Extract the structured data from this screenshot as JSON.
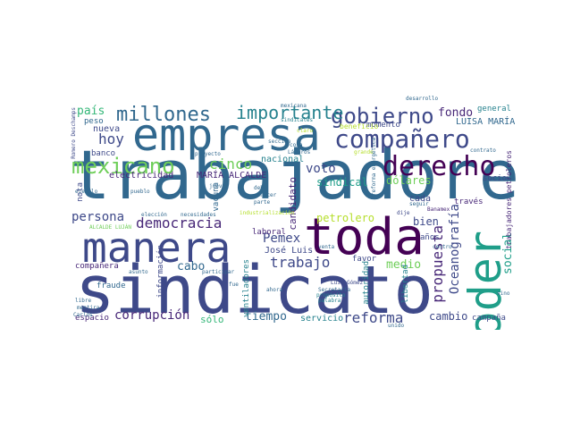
{
  "colors": {
    "background": "#ffffff",
    "palette": [
      "#440154",
      "#482878",
      "#3e4989",
      "#31688e",
      "#26828e",
      "#1f9e89",
      "#35b779",
      "#6ece58",
      "#b5de2b",
      "#fde725"
    ]
  },
  "words": {
    "trabajadores": "trabajadores",
    "sindicato": "sindicato",
    "empresa": "empresa",
    "manera": "manera",
    "toda": "toda",
    "poder": "poder",
    "companero": "compañero",
    "derecho": "derecho",
    "gobierno": "gobierno",
    "millones": "millones",
    "importante": "importante",
    "mexicano": "mexicano",
    "hoy": "hoy",
    "cinco": "cinco",
    "democracia": "democracia",
    "pemex": "Pemex",
    "trabajo": "trabajo",
    "propuesta": "propuesta",
    "oceanografia": "Oceanografía",
    "voto": "voto",
    "sindical": "sindical",
    "dolares": "dólares",
    "persona": "persona",
    "corrupcion": "corrupción",
    "reforma": "reforma",
    "tiempo": "tiempo",
    "cabo": "cabo",
    "medio": "medio",
    "social": "social",
    "cambio": "cambio",
    "fondo": "fondo",
    "luisa_maria": "LUISA MARÍA",
    "pais": "país",
    "nueva": "nueva",
    "peso": "peso",
    "electricidad": "electricidad",
    "maria_alcalde": "MARÍA ALCALDE",
    "nacional": "nacional",
    "candidato": "candidato",
    "petrolero": "petrolero",
    "bien": "bien",
    "cada": "cada",
    "traves": "través",
    "socio": "socio",
    "general": "general",
    "momento": "momento",
    "beneficio": "beneficio",
    "jose_luis": "José Luis",
    "laboral": "laboral",
    "favor": "favor",
    "anos": "años",
    "vacuna": "vacuna",
    "nota": "nota",
    "banco": "banco",
    "companera": "compañera",
    "informacion": "información",
    "fraude": "fraude",
    "espacio": "espacio",
    "solo": "sólo",
    "servicio": "servicio",
    "campana": "campaña",
    "ventiladores": "ventiladores",
    "autoridad": "autoridad",
    "libertad": "libertad",
    "trabajadores_petroleros": "trabajadores petroleros",
    "romero_deschamps": "Romero Deschamps",
    "desarrollo": "desarrollo",
    "sindicales": "sindicales",
    "seccion": "sección",
    "contrato": "contrato",
    "grande": "grande",
    "banamex": "Banamex",
    "ejemplo": "ejemplo",
    "pueblo": "pueblo",
    "eleccion": "elección",
    "necesidades": "necesidades",
    "industrializacion": "industrialización",
    "dije": "dije",
    "centro": "centro",
    "luis_gomez": "Luis Gómez",
    "secretaria": "Secretaría",
    "proposito": "propósito",
    "palabra": "palabra",
    "mentira": "mentira",
    "carlos": "Carlos",
    "libre": "libre",
    "unido": "unido",
    "debe": "debe",
    "conocer": "conocer",
    "parte": "parte",
    "venta": "venta",
    "alcalde_lujan": "ALCALDE LUJÁN",
    "sino": "sino",
    "mexicana": "mexicana",
    "proyecto": "proyecto",
    "reforma_energetica": "reforma energética",
    "jueves": "jueves",
    "claro": "claro",
    "cosa": "cosa",
    "lazaros": "Lázaros",
    "seguir": "seguir",
    "asunto": "asunto",
    "participar": "participar",
    "fue": "fue",
    "ahora": "ahora"
  }
}
